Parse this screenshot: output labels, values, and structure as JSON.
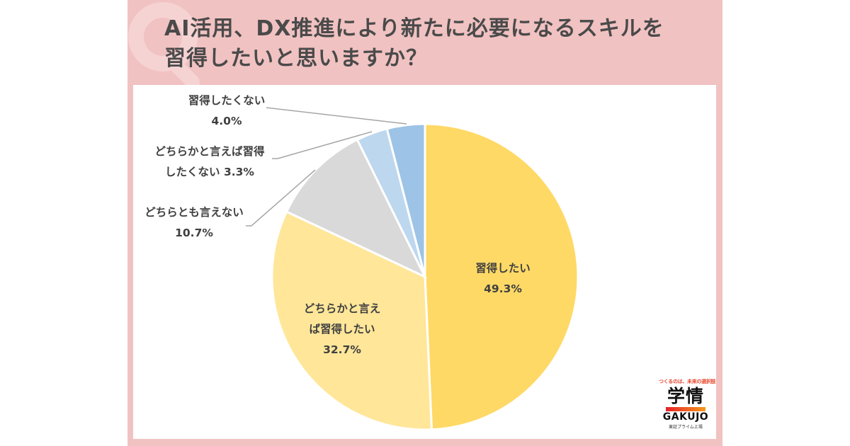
{
  "header": {
    "title_line1": "AI活用、DX推進により新たに必要になるスキルを",
    "title_line2": "習得したいと思いますか？",
    "watermark_icon": "q-letter-icon"
  },
  "chart_data": {
    "type": "pie",
    "title": "AI活用、DX推進により新たに必要になるスキルを習得したいと思いますか？",
    "start_angle_deg": 0,
    "direction": "clockwise",
    "slices": [
      {
        "label": "習得したい",
        "value": 49.3,
        "display": "49.3%",
        "color": "#ffd966"
      },
      {
        "label": "どちらかと言えば習得したい",
        "value": 32.7,
        "display": "32.7%",
        "color": "#ffe699"
      },
      {
        "label": "どちらとも言えない",
        "value": 10.7,
        "display": "10.7%",
        "color": "#d9d9d9"
      },
      {
        "label": "どちらかと言えば習得したくない",
        "value": 3.3,
        "display": "3.3%",
        "color": "#bdd7ee"
      },
      {
        "label": "習得したくない",
        "value": 4.0,
        "display": "4.0%",
        "color": "#9dc3e6"
      }
    ],
    "legend": "none (data labels with leader lines)"
  },
  "labels": {
    "s0_line1": "習得したい",
    "s0_line2": "49.3%",
    "s1_line1": "どちらかと言え",
    "s1_line2": "ば習得したい",
    "s1_line3": "32.7%",
    "s2_line1": "どちらとも言えない",
    "s2_line2": "10.7%",
    "s3_line1": "どちらかと言えば習得",
    "s3_line2": "したくない 3.3%",
    "s4_line1": "習得したくない",
    "s4_line2": "4.0%"
  },
  "logo": {
    "tagline": "つくるのは、未来の選択肢",
    "kanji": "学情",
    "english": "GAKUJO",
    "sub": "東証プライム上場",
    "accent_color": "#e8452c"
  },
  "colors": {
    "panel_bg": "#f1c2c2",
    "title_text": "#4a4a4a",
    "label_text": "#404040"
  }
}
